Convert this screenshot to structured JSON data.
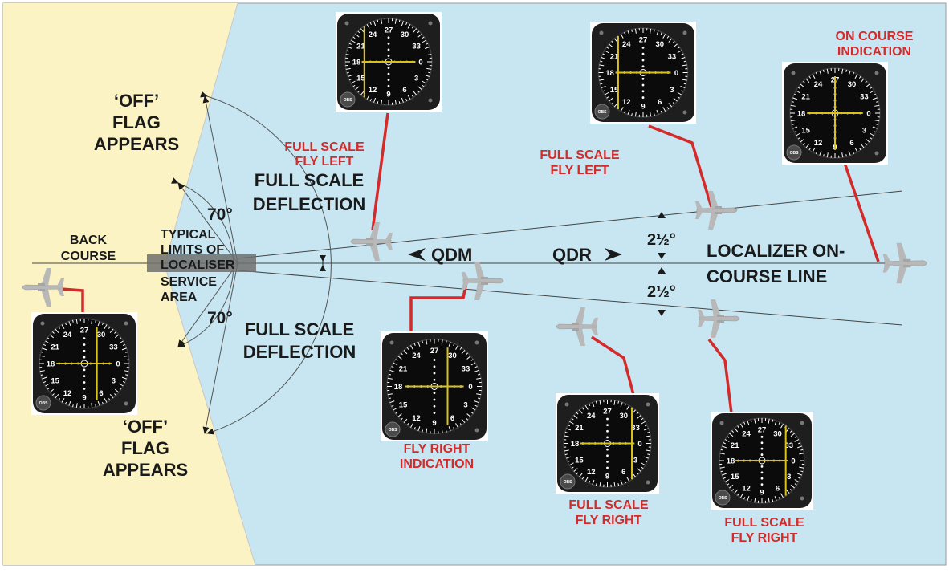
{
  "colors": {
    "sky": "#c7e6f1",
    "sand": "#fbf3c3",
    "accent_red": "#d42a2a",
    "text_dark": "#1a1a1a",
    "indicator_yellow": "#d8c31c",
    "instrument_face": "#0b0b0b",
    "aircraft_gray": "#b8b8b8"
  },
  "labels": {
    "off_flag_top": [
      "‘OFF’",
      "FLAG",
      "APPEARS"
    ],
    "off_flag_bottom": [
      "‘OFF’",
      "FLAG",
      "APPEARS"
    ],
    "back_course": [
      "BACK",
      "COURSE"
    ],
    "angle_70_top": "70°",
    "angle_70_bottom": "70°",
    "typical_limits": [
      "TYPICAL",
      "LIMITS OF",
      "LOCALISER",
      "SERVICE",
      "AREA"
    ],
    "full_scale_deflection_top": [
      "FULL SCALE",
      "DEFLECTION"
    ],
    "full_scale_deflection_bottom": [
      "FULL SCALE",
      "DEFLECTION"
    ],
    "qdm": "QDM",
    "qdr": "QDR",
    "half_angle_top": "2½°",
    "half_angle_bottom": "2½°",
    "localizer_line": [
      "LOCALIZER ON-",
      "COURSE LINE"
    ],
    "full_scale_fly_left_1": [
      "FULL SCALE",
      "FLY LEFT"
    ],
    "full_scale_fly_left_2": [
      "FULL SCALE",
      "FLY LEFT"
    ],
    "on_course_indication": [
      "ON COURSE",
      "INDICATION"
    ],
    "fly_right_indication": [
      "FLY RIGHT",
      "INDICATION"
    ],
    "full_scale_fly_right_1": [
      "FULL SCALE",
      "FLY RIGHT"
    ],
    "full_scale_fly_right_2": [
      "FULL SCALE",
      "FLY RIGHT"
    ]
  },
  "instrument": {
    "dial_numbers": [
      "27",
      "30",
      "33",
      "0",
      "3",
      "6",
      "9",
      "12",
      "15",
      "18",
      "21",
      "24"
    ],
    "obs_label": "OBS"
  },
  "instruments": [
    {
      "name": "cdi-full-scale-fly-left-upper",
      "deflection": -1.0
    },
    {
      "name": "cdi-full-scale-fly-left-lower",
      "deflection": -1.0
    },
    {
      "name": "cdi-on-course",
      "deflection": 0.0
    },
    {
      "name": "cdi-back-course",
      "deflection": 0.5
    },
    {
      "name": "cdi-fly-right",
      "deflection": 0.5
    },
    {
      "name": "cdi-full-scale-fly-right-left",
      "deflection": 1.0
    },
    {
      "name": "cdi-full-scale-fly-right-right",
      "deflection": 1.0
    }
  ]
}
